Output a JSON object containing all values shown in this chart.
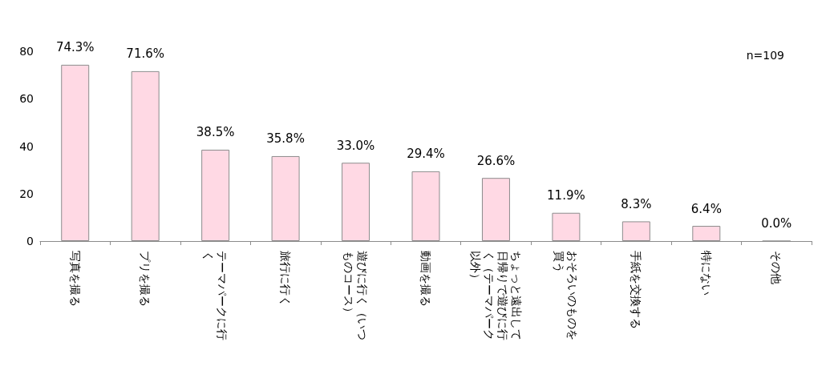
{
  "chart_data": {
    "type": "bar",
    "categories": [
      "写真を撮る",
      "プリを撮る",
      "テーマパークに行く",
      "旅行に行く",
      "遊びに行く（いつものコース）",
      "動画を撮る",
      "ちょっと遠出して日帰りで遊びに行く（テーマパーク以外）",
      "おそろいのものを買う",
      "手紙を交換する",
      "特にない",
      "その他"
    ],
    "values": [
      74.3,
      71.6,
      38.5,
      35.8,
      33.0,
      29.4,
      26.6,
      11.9,
      8.3,
      6.4,
      0.0
    ],
    "value_labels": [
      "74.3%",
      "71.6%",
      "38.5%",
      "35.8%",
      "33.0%",
      "29.4%",
      "26.6%",
      "11.9%",
      "8.3%",
      "6.4%",
      "0.0%"
    ],
    "color": "#ffd9e4",
    "ylim": [
      0,
      80
    ],
    "yticks": [
      0,
      20,
      40,
      60,
      80
    ],
    "annotations": [
      "n=109"
    ]
  }
}
